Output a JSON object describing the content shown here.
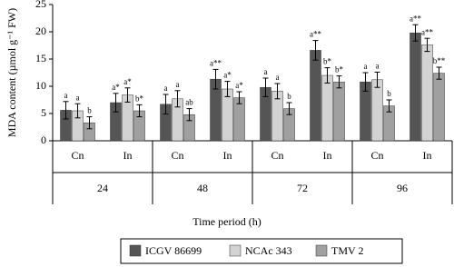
{
  "chart_data": {
    "type": "bar",
    "categories": [
      "Cn",
      "In",
      "Cn",
      "In",
      "Cn",
      "In",
      "Cn",
      "In"
    ],
    "groups": [
      "24",
      "48",
      "72",
      "96"
    ],
    "x_label": "Time period (h)",
    "y_label": "MDA content (µmol g⁻¹ FW)",
    "ylim": [
      0,
      25
    ],
    "yticks": [
      0,
      5,
      10,
      15,
      20,
      25
    ],
    "series": [
      {
        "name": "ICGV 86699",
        "color": "#555555",
        "values": [
          5.6,
          7.0,
          6.7,
          11.3,
          9.8,
          16.6,
          10.8,
          19.8
        ],
        "errors": [
          1.6,
          1.7,
          1.8,
          1.8,
          1.7,
          1.8,
          1.7,
          1.5
        ],
        "letters": [
          "a",
          "a*",
          "a",
          "a**",
          "a",
          "a**",
          "a",
          "a**"
        ]
      },
      {
        "name": "NCAc 343",
        "color": "#d3d3d3",
        "values": [
          5.5,
          8.4,
          7.7,
          9.5,
          9.1,
          12.0,
          11.2,
          17.6
        ],
        "errors": [
          1.3,
          1.3,
          1.5,
          1.4,
          1.4,
          1.4,
          1.4,
          1.2
        ],
        "letters": [
          "a",
          "a*",
          "a",
          "a*",
          "a",
          "b*",
          "a",
          "a**"
        ]
      },
      {
        "name": "TMV 2",
        "color": "#a0a0a0",
        "values": [
          3.3,
          5.5,
          4.8,
          7.9,
          5.9,
          10.8,
          6.4,
          12.4
        ],
        "errors": [
          1.1,
          1.1,
          1.1,
          1.1,
          1.1,
          1.1,
          1.1,
          1.1
        ],
        "letters": [
          "b",
          "b*",
          "ab",
          "a*",
          "b",
          "b*",
          "b",
          "b**"
        ]
      }
    ]
  }
}
